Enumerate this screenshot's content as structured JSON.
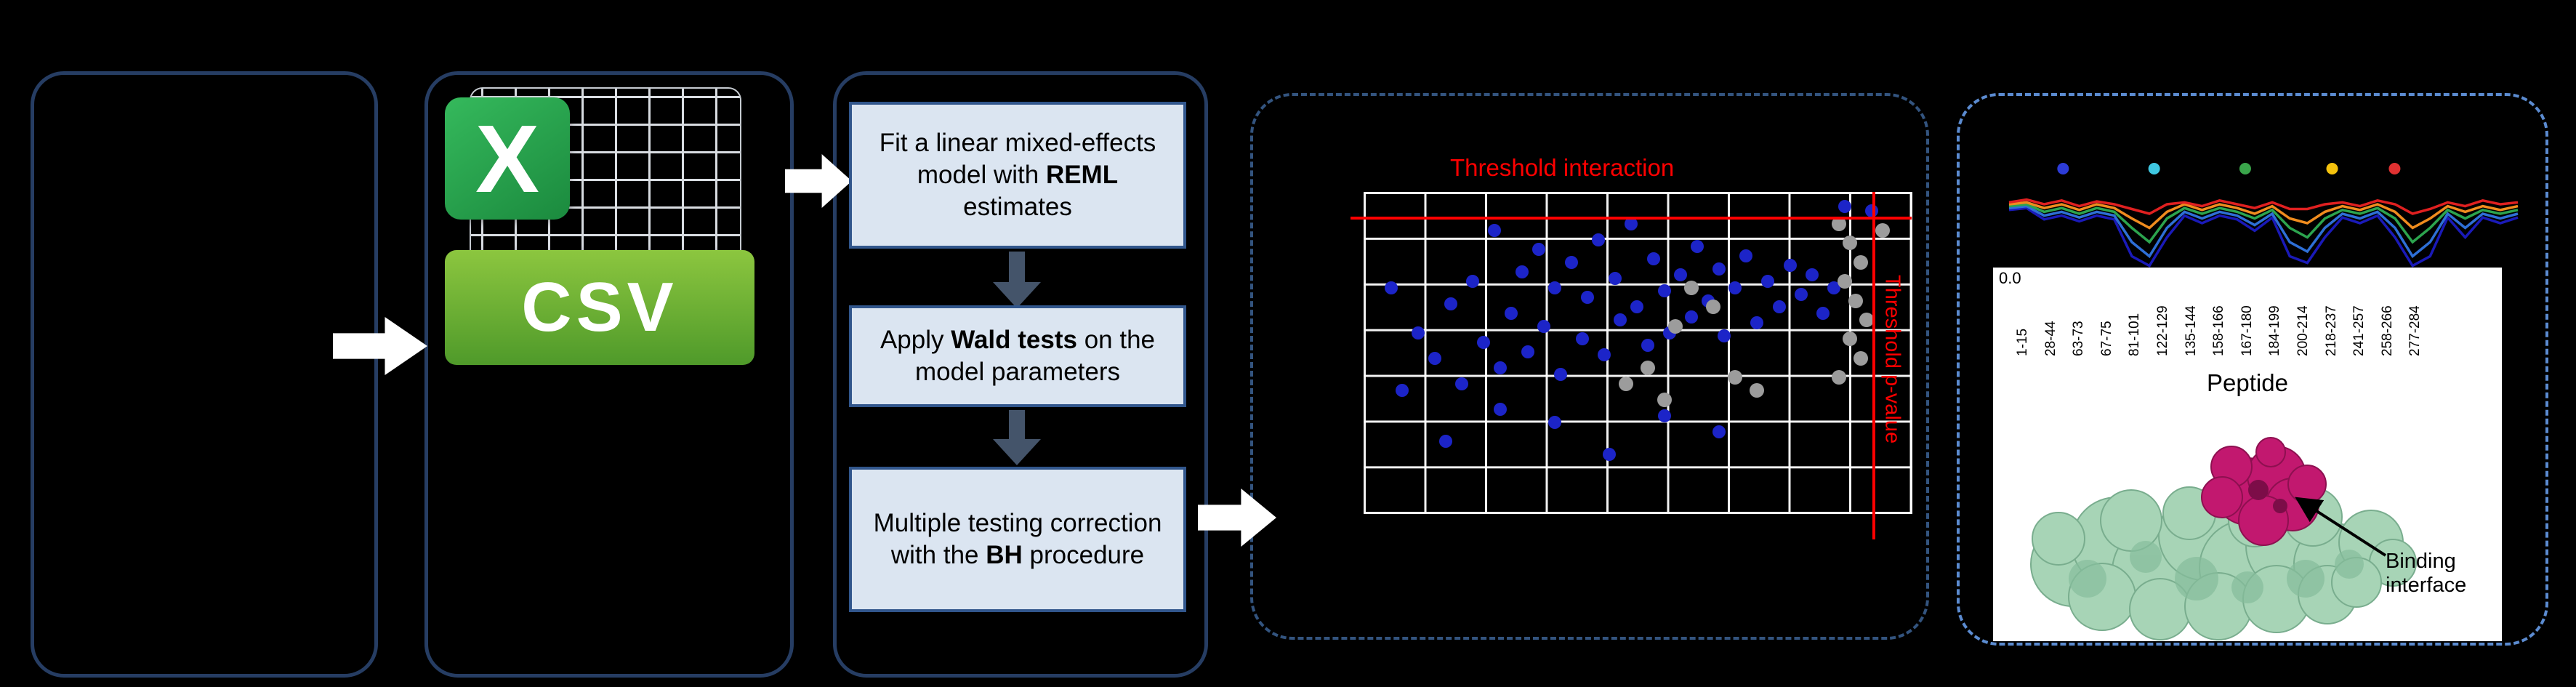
{
  "workflow": {
    "csv": {
      "logo_letter": "X",
      "label": "CSV"
    },
    "steps": [
      {
        "pre": "Fit a linear mixed-effects model with ",
        "bold": "REML",
        "post": " estimates"
      },
      {
        "pre": "Apply ",
        "bold": "Wald tests",
        "post": " on the model parameters"
      },
      {
        "line1": "Multiple testing correction",
        "pre": "with the ",
        "bold": "BH",
        "post": " procedure"
      }
    ]
  },
  "chart_data": [
    {
      "type": "scatter",
      "title": "",
      "xlabel": "",
      "ylabel": "",
      "grid": {
        "grid_on": true,
        "cols": 9,
        "rows": 7
      },
      "thresholds": {
        "horizontal_label": "Threshold interaction",
        "vertical_label": "Threshold p-value",
        "horizontal_y_frac": 0.082,
        "vertical_x_frac": 0.934
      },
      "series": [
        {
          "name": "significant-peptides",
          "color": "#1c24c8",
          "point_size": 18,
          "points": [
            [
              0.05,
              0.3
            ],
            [
              0.07,
              0.62
            ],
            [
              0.1,
              0.44
            ],
            [
              0.13,
              0.52
            ],
            [
              0.16,
              0.35
            ],
            [
              0.18,
              0.6
            ],
            [
              0.2,
              0.28
            ],
            [
              0.22,
              0.47
            ],
            [
              0.24,
              0.12
            ],
            [
              0.25,
              0.55
            ],
            [
              0.27,
              0.38
            ],
            [
              0.29,
              0.25
            ],
            [
              0.3,
              0.5
            ],
            [
              0.32,
              0.18
            ],
            [
              0.33,
              0.42
            ],
            [
              0.35,
              0.3
            ],
            [
              0.36,
              0.57
            ],
            [
              0.38,
              0.22
            ],
            [
              0.4,
              0.46
            ],
            [
              0.41,
              0.33
            ],
            [
              0.43,
              0.15
            ],
            [
              0.44,
              0.51
            ],
            [
              0.46,
              0.27
            ],
            [
              0.47,
              0.4
            ],
            [
              0.49,
              0.1
            ],
            [
              0.5,
              0.36
            ],
            [
              0.52,
              0.48
            ],
            [
              0.53,
              0.21
            ],
            [
              0.55,
              0.31
            ],
            [
              0.56,
              0.44
            ],
            [
              0.58,
              0.26
            ],
            [
              0.6,
              0.39
            ],
            [
              0.61,
              0.17
            ],
            [
              0.63,
              0.34
            ],
            [
              0.65,
              0.24
            ],
            [
              0.66,
              0.45
            ],
            [
              0.68,
              0.3
            ],
            [
              0.7,
              0.2
            ],
            [
              0.72,
              0.41
            ],
            [
              0.74,
              0.28
            ],
            [
              0.76,
              0.36
            ],
            [
              0.78,
              0.23
            ],
            [
              0.8,
              0.32
            ],
            [
              0.82,
              0.26
            ],
            [
              0.84,
              0.38
            ],
            [
              0.86,
              0.3
            ],
            [
              0.15,
              0.78
            ],
            [
              0.35,
              0.72
            ],
            [
              0.55,
              0.7
            ],
            [
              0.45,
              0.82
            ],
            [
              0.25,
              0.68
            ],
            [
              0.65,
              0.75
            ],
            [
              0.93,
              0.06
            ],
            [
              0.88,
              0.045
            ]
          ]
        },
        {
          "name": "non-significant-peptides",
          "color": "#9c9c9c",
          "point_size": 20,
          "points": [
            [
              0.87,
              0.1
            ],
            [
              0.89,
              0.16
            ],
            [
              0.91,
              0.22
            ],
            [
              0.88,
              0.28
            ],
            [
              0.9,
              0.34
            ],
            [
              0.92,
              0.4
            ],
            [
              0.89,
              0.46
            ],
            [
              0.91,
              0.52
            ],
            [
              0.87,
              0.58
            ],
            [
              0.6,
              0.3
            ],
            [
              0.64,
              0.36
            ],
            [
              0.57,
              0.42
            ],
            [
              0.52,
              0.55
            ],
            [
              0.48,
              0.6
            ],
            [
              0.55,
              0.65
            ],
            [
              0.68,
              0.58
            ],
            [
              0.72,
              0.62
            ],
            [
              0.95,
              0.12
            ]
          ]
        }
      ]
    },
    {
      "type": "line",
      "title": "",
      "ylabel_tick": "0.0",
      "xlabel": "Peptide",
      "x_categories": [
        "1-15",
        "28-44",
        "63-73",
        "67-75",
        "81-101",
        "122-129",
        "135-144",
        "158-166",
        "167-180",
        "184-199",
        "200-214",
        "218-237",
        "241-257",
        "258-266",
        "277-284"
      ],
      "legend_dots": [
        {
          "color": "#2d3cd8",
          "x_frac": 0.115
        },
        {
          "color": "#3fc8e2",
          "x_frac": 0.29
        },
        {
          "color": "#3aa54b",
          "x_frac": 0.465
        },
        {
          "color": "#f4c20d",
          "x_frac": 0.632
        },
        {
          "color": "#e03131",
          "x_frac": 0.752
        }
      ],
      "series": [
        {
          "name": "navy",
          "color": "#1a1ab8",
          "values": [
            0.64,
            0.66,
            0.54,
            0.58,
            0.52,
            0.58,
            0.54,
            0.15,
            0.05,
            0.35,
            0.58,
            0.5,
            0.58,
            0.54,
            0.42,
            0.56,
            0.15,
            0.08,
            0.35,
            0.56,
            0.5,
            0.58,
            0.35,
            0.05,
            0.15,
            0.56,
            0.35,
            0.56,
            0.5,
            0.56
          ]
        },
        {
          "name": "blue",
          "color": "#2e6fd6",
          "values": [
            0.66,
            0.68,
            0.58,
            0.62,
            0.56,
            0.62,
            0.58,
            0.3,
            0.15,
            0.45,
            0.62,
            0.55,
            0.62,
            0.58,
            0.48,
            0.6,
            0.3,
            0.2,
            0.45,
            0.6,
            0.55,
            0.62,
            0.45,
            0.15,
            0.3,
            0.6,
            0.45,
            0.6,
            0.55,
            0.6
          ]
        },
        {
          "name": "green",
          "color": "#2ca44e",
          "values": [
            0.68,
            0.7,
            0.62,
            0.66,
            0.6,
            0.66,
            0.62,
            0.45,
            0.3,
            0.55,
            0.66,
            0.6,
            0.66,
            0.62,
            0.55,
            0.64,
            0.45,
            0.35,
            0.55,
            0.64,
            0.6,
            0.66,
            0.55,
            0.3,
            0.45,
            0.64,
            0.55,
            0.64,
            0.6,
            0.64
          ]
        },
        {
          "name": "orange",
          "color": "#f08c1e",
          "values": [
            0.7,
            0.72,
            0.66,
            0.7,
            0.64,
            0.7,
            0.66,
            0.55,
            0.45,
            0.62,
            0.7,
            0.64,
            0.7,
            0.66,
            0.6,
            0.68,
            0.55,
            0.5,
            0.62,
            0.68,
            0.64,
            0.7,
            0.62,
            0.45,
            0.55,
            0.68,
            0.62,
            0.68,
            0.64,
            0.68
          ]
        },
        {
          "name": "red",
          "color": "#e02020",
          "values": [
            0.72,
            0.75,
            0.7,
            0.74,
            0.68,
            0.73,
            0.7,
            0.65,
            0.6,
            0.7,
            0.72,
            0.68,
            0.74,
            0.7,
            0.66,
            0.72,
            0.65,
            0.65,
            0.7,
            0.72,
            0.68,
            0.74,
            0.7,
            0.6,
            0.65,
            0.72,
            0.68,
            0.74,
            0.7,
            0.72
          ]
        }
      ]
    }
  ],
  "structure": {
    "annotation": "Binding interface"
  }
}
